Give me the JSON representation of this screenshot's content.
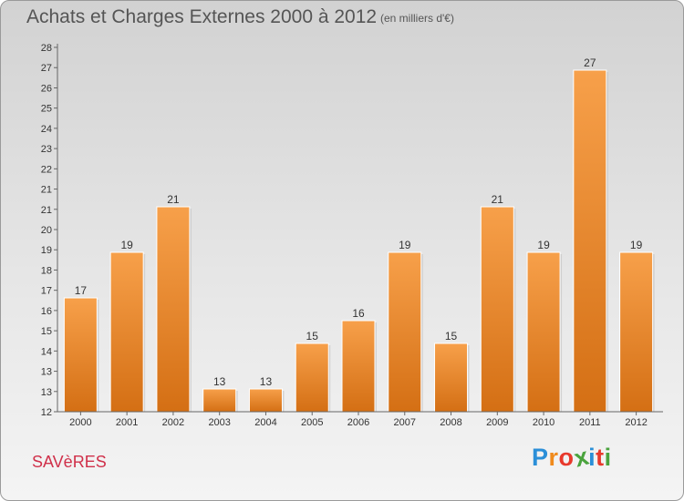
{
  "header": {
    "title": "Achats et Charges Externes 2000 à 2012",
    "subtitle": "(en milliers d'€)"
  },
  "footer": {
    "place": "SAVèRES",
    "logo_letters": [
      "P",
      "r",
      "o",
      "x",
      "i",
      "t",
      "i"
    ],
    "logo_colors": [
      "#2b8fd8",
      "#f08a1c",
      "#e8392c",
      "#4aa33d",
      "#2b8fd8",
      "#e8392c",
      "#4aa33d"
    ]
  },
  "colors": {
    "bar": "#f28f2c",
    "bar_dark": "#cf6c12",
    "axis_text": "#333333",
    "grid": "#bdbdbd"
  },
  "chart_data": {
    "type": "bar",
    "categories": [
      "2000",
      "2001",
      "2002",
      "2003",
      "2004",
      "2005",
      "2006",
      "2007",
      "2008",
      "2009",
      "2010",
      "2011",
      "2012"
    ],
    "values": [
      17,
      19,
      21,
      13,
      13,
      15,
      16,
      19,
      15,
      21,
      19,
      27,
      19
    ],
    "data_labels": [
      "17",
      "19",
      "21",
      "13",
      "13",
      "15",
      "16",
      "19",
      "15",
      "21",
      "19",
      "27",
      "19"
    ],
    "ylim": [
      12,
      28
    ],
    "yticks": [
      "12",
      "13",
      "13",
      "14",
      "15",
      "16",
      "17",
      "18",
      "19",
      "20",
      "21",
      "21",
      "22",
      "23",
      "24",
      "25",
      "26",
      "27",
      "28"
    ],
    "grid": false
  }
}
